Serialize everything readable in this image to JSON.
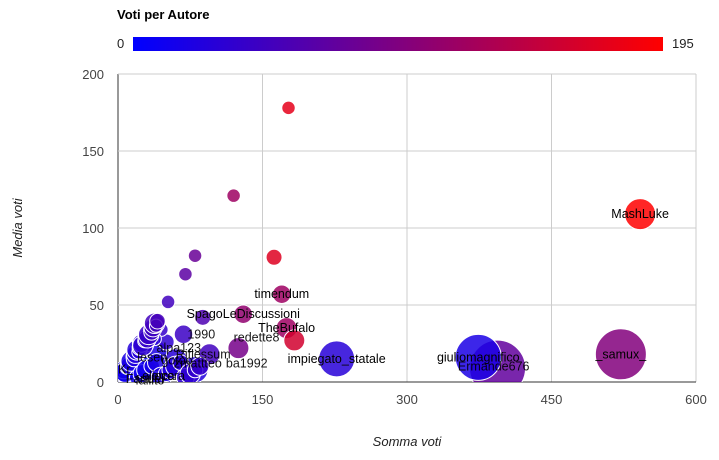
{
  "chart_data": {
    "type": "bubble",
    "title": "",
    "xlabel": "Somma voti",
    "ylabel": "Media voti",
    "xlim": [
      0,
      600
    ],
    "ylim": [
      0,
      200
    ],
    "x_ticks": [
      "0",
      "150",
      "300",
      "450",
      "600"
    ],
    "y_ticks": [
      "0",
      "50",
      "100",
      "150",
      "200"
    ],
    "grid": true,
    "color_legend": {
      "title": "Voti per Autore",
      "min_label": "0",
      "max_label": "195",
      "min": 0,
      "max": 195,
      "colors": [
        "#0000ff",
        "#ff0000"
      ],
      "placement": "top"
    },
    "points": [
      {
        "label": "",
        "x": 177,
        "y": 178,
        "color_value": 175,
        "size": 3
      },
      {
        "label": "",
        "x": 120,
        "y": 121,
        "color_value": 120,
        "size": 3
      },
      {
        "label": "MashLuke",
        "x": 542,
        "y": 109,
        "color_value": 195,
        "size": 10
      },
      {
        "label": "",
        "x": 80,
        "y": 82,
        "color_value": 80,
        "size": 3
      },
      {
        "label": "",
        "x": 162,
        "y": 81,
        "color_value": 170,
        "size": 4
      },
      {
        "label": "",
        "x": 70,
        "y": 70,
        "color_value": 70,
        "size": 3
      },
      {
        "label": "timendum",
        "x": 170,
        "y": 57,
        "color_value": 120,
        "size": 5
      },
      {
        "label": "",
        "x": 52,
        "y": 52,
        "color_value": 50,
        "size": 3
      },
      {
        "label": "SpagoLeDiscussioni",
        "x": 130,
        "y": 44,
        "color_value": 110,
        "size": 5
      },
      {
        "label": "",
        "x": 88,
        "y": 42,
        "color_value": 60,
        "size": 4
      },
      {
        "label": "TheBufalo",
        "x": 175,
        "y": 35,
        "color_value": 120,
        "size": 6
      },
      {
        "label": "",
        "x": 183,
        "y": 27,
        "color_value": 160,
        "size": 6
      },
      {
        "label": "",
        "x": 125,
        "y": 22,
        "color_value": 90,
        "size": 6
      },
      {
        "label": "impiegato_statale",
        "x": 227,
        "y": 15,
        "color_value": 30,
        "size": 12
      },
      {
        "label": "giuliomagnifico",
        "x": 374,
        "y": 16,
        "color_value": 20,
        "size": 16
      },
      {
        "label": "",
        "x": 394,
        "y": 9,
        "color_value": 75,
        "size": 20
      },
      {
        "label": "_samux_",
        "x": 522,
        "y": 18,
        "color_value": 100,
        "size": 18
      },
      {
        "label": "",
        "x": 40,
        "y": 20,
        "color_value": 20,
        "size": 6
      },
      {
        "label": "",
        "x": 60,
        "y": 14,
        "color_value": 30,
        "size": 7
      },
      {
        "label": "",
        "x": 80,
        "y": 8,
        "color_value": 25,
        "size": 8
      },
      {
        "label": "",
        "x": 25,
        "y": 12,
        "color_value": 10,
        "size": 4
      },
      {
        "label": "",
        "x": 15,
        "y": 6,
        "color_value": 5,
        "size": 4
      },
      {
        "label": "",
        "x": 5,
        "y": 4,
        "color_value": 2,
        "size": 3
      },
      {
        "label": "",
        "x": 10,
        "y": 8,
        "color_value": 5,
        "size": 3
      },
      {
        "label": "",
        "x": 45,
        "y": 34,
        "color_value": 40,
        "size": 3
      },
      {
        "label": "",
        "x": 38,
        "y": 28,
        "color_value": 30,
        "size": 3
      },
      {
        "label": "",
        "x": 30,
        "y": 24,
        "color_value": 20,
        "size": 3
      },
      {
        "label": "",
        "x": 50,
        "y": 26,
        "color_value": 35,
        "size": 4
      },
      {
        "label": "",
        "x": 68,
        "y": 31,
        "color_value": 45,
        "size": 5
      },
      {
        "label": "",
        "x": 95,
        "y": 18,
        "color_value": 50,
        "size": 6
      }
    ],
    "overlap_labels": [
      "Kr",
      "Fanuel",
      "fallito",
      "elioca",
      "alpa123",
      "1990",
      "redette8",
      "gotoo",
      "Riflessum",
      "zmattteo",
      "ba1992",
      "Ermande676",
      "lesen",
      "errera"
    ]
  }
}
